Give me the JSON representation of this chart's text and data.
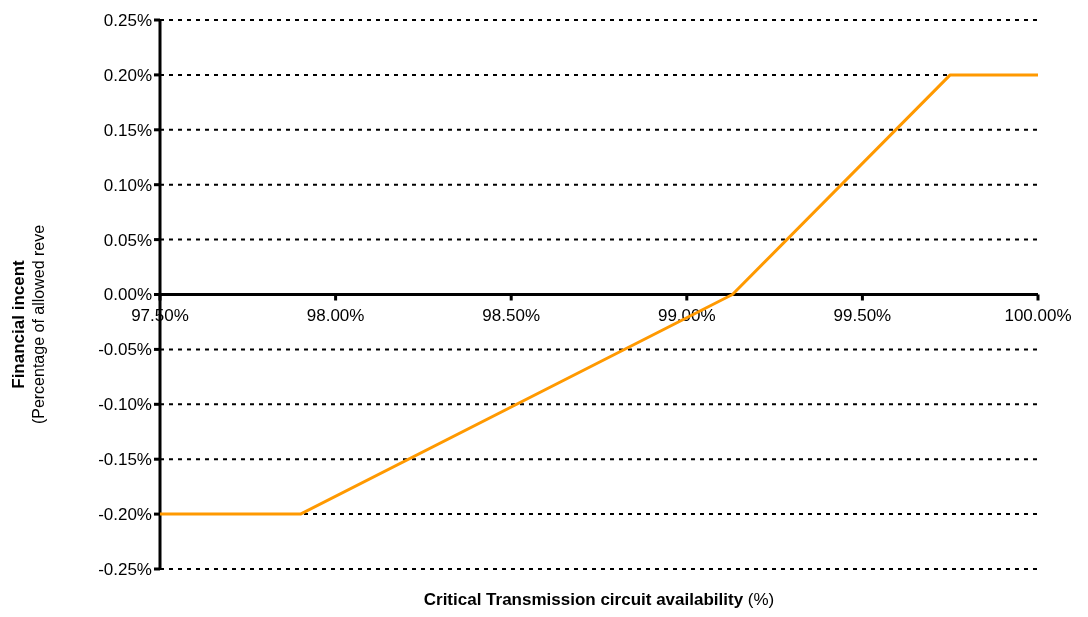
{
  "chart_data": {
    "type": "line",
    "xlabel": "Critical Transmission circuit availability (%)",
    "ylabel": "Financial incent\n(Percentage of allowed reve",
    "x": [
      97.5,
      97.9,
      99.13,
      99.75,
      100
    ],
    "series": [
      {
        "color": "#ff9900",
        "values": [
          -0.2,
          -0.2,
          0,
          0.2,
          0.2
        ]
      }
    ],
    "xlim": [
      97.5,
      100
    ],
    "ylim": [
      -0.25,
      0.25
    ],
    "xticks": [
      {
        "value": 97.5,
        "label": "97.50%"
      },
      {
        "value": 98,
        "label": "98.00%"
      },
      {
        "value": 98.5,
        "label": "98.50%"
      },
      {
        "value": 99,
        "label": "99.00%"
      },
      {
        "value": 99.5,
        "label": "99.50%"
      },
      {
        "value": 100,
        "label": "100.00%"
      }
    ],
    "yticks": [
      {
        "value": -0.25,
        "label": "-0.25%"
      },
      {
        "value": -0.2,
        "label": "-0.20%"
      },
      {
        "value": -0.15,
        "label": "-0.15%"
      },
      {
        "value": -0.1,
        "label": "-0.10%"
      },
      {
        "value": -0.05,
        "label": "-0.05%"
      },
      {
        "value": 0,
        "label": "0.00%"
      },
      {
        "value": 0.05,
        "label": "0.05%"
      },
      {
        "value": 0.1,
        "label": "0.10%"
      },
      {
        "value": 0.15,
        "label": "0.15%"
      },
      {
        "value": 0.2,
        "label": "0.20%"
      },
      {
        "value": 0.25,
        "label": "0.25%"
      }
    ],
    "grid": "y",
    "marker": "none",
    "line_style": "solid"
  }
}
